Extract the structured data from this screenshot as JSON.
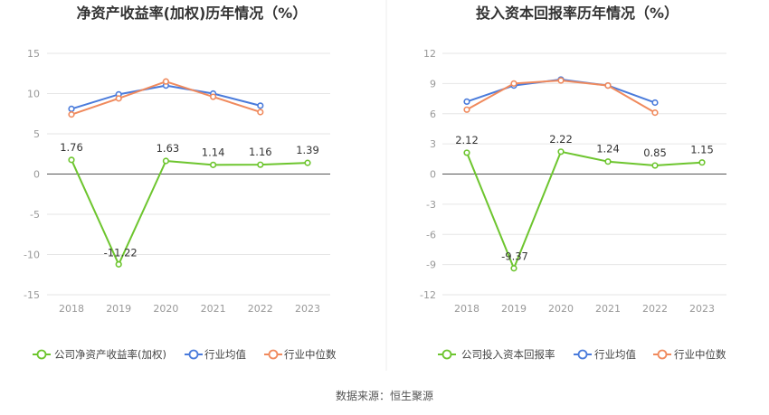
{
  "chart_data": [
    {
      "type": "line",
      "title": "净资产收益率(加权)历年情况（%）",
      "categories": [
        "2018",
        "2019",
        "2020",
        "2021",
        "2022",
        "2023"
      ],
      "yticks": [
        "15",
        "10",
        "5",
        "0",
        "-5",
        "-10",
        "-15"
      ],
      "ylim": [
        -15,
        15
      ],
      "grid": true,
      "legend_position": "bottom",
      "series": [
        {
          "name": "公司净资产收益率(加权)",
          "color": "#6dc52e",
          "values": [
            1.76,
            -11.22,
            1.63,
            1.14,
            1.16,
            1.39
          ],
          "labels": [
            "1.76",
            "-11.22",
            "1.63",
            "1.14",
            "1.16",
            "1.39"
          ]
        },
        {
          "name": "行业均值",
          "color": "#4a7bdb",
          "values": [
            8.1,
            9.9,
            11.0,
            10.0,
            8.5,
            null
          ]
        },
        {
          "name": "行业中位数",
          "color": "#f08a5d",
          "values": [
            7.4,
            9.4,
            11.5,
            9.6,
            7.7,
            null
          ]
        }
      ]
    },
    {
      "type": "line",
      "title": "投入资本回报率历年情况（%）",
      "categories": [
        "2018",
        "2019",
        "2020",
        "2021",
        "2022",
        "2023"
      ],
      "yticks": [
        "12",
        "9",
        "6",
        "3",
        "0",
        "-3",
        "-6",
        "-9",
        "-12"
      ],
      "ylim": [
        -12,
        12
      ],
      "grid": true,
      "legend_position": "bottom",
      "series": [
        {
          "name": "公司投入资本回报率",
          "color": "#6dc52e",
          "values": [
            2.12,
            -9.37,
            2.22,
            1.24,
            0.85,
            1.15
          ],
          "labels": [
            "2.12",
            "-9.37",
            "2.22",
            "1.24",
            "0.85",
            "1.15"
          ]
        },
        {
          "name": "行业均值",
          "color": "#4a7bdb",
          "values": [
            7.2,
            8.8,
            9.4,
            8.8,
            7.1,
            null
          ]
        },
        {
          "name": "行业中位数",
          "color": "#f08a5d",
          "values": [
            6.4,
            9.0,
            9.3,
            8.8,
            6.1,
            null
          ]
        }
      ]
    }
  ],
  "source_text": "数据来源：恒生聚源"
}
